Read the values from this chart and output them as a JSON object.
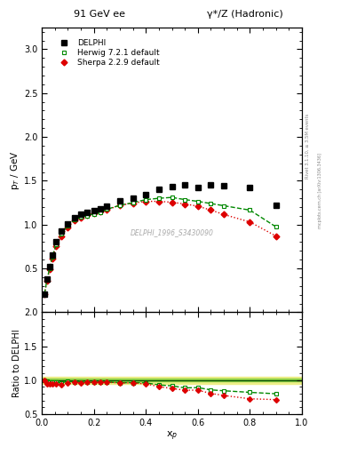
{
  "title_left": "91 GeV ee",
  "title_right": "γ*/Z (Hadronic)",
  "right_label1": "Rivet 3.1.10, ≥ 3.5M events",
  "right_label2": "mcplots.cern.ch [arXiv:1306.3436]",
  "watermark": "DELPHI_1996_S3430090",
  "xlabel": "x$_p$",
  "ylabel": "p$_T$ / GeV",
  "ylabel_ratio": "Ratio to DELPHI",
  "ylim_main": [
    0.0,
    3.25
  ],
  "ylim_ratio": [
    0.5,
    2.0
  ],
  "yticks_main": [
    0.5,
    1.0,
    1.5,
    2.0,
    2.5,
    3.0
  ],
  "yticks_ratio": [
    0.5,
    1.0,
    1.5,
    2.0
  ],
  "xlim": [
    0.0,
    1.0
  ],
  "delphi_x": [
    0.01,
    0.02,
    0.03,
    0.04,
    0.055,
    0.075,
    0.1,
    0.125,
    0.15,
    0.175,
    0.2,
    0.225,
    0.25,
    0.3,
    0.35,
    0.4,
    0.45,
    0.5,
    0.55,
    0.6,
    0.65,
    0.7,
    0.8,
    0.9
  ],
  "delphi_y": [
    0.21,
    0.38,
    0.52,
    0.65,
    0.8,
    0.93,
    1.01,
    1.08,
    1.12,
    1.14,
    1.16,
    1.18,
    1.21,
    1.27,
    1.3,
    1.34,
    1.4,
    1.43,
    1.45,
    1.42,
    1.45,
    1.44,
    1.42,
    1.22
  ],
  "herwig_x": [
    0.01,
    0.02,
    0.03,
    0.04,
    0.055,
    0.075,
    0.1,
    0.125,
    0.15,
    0.175,
    0.2,
    0.225,
    0.25,
    0.3,
    0.35,
    0.4,
    0.45,
    0.5,
    0.55,
    0.6,
    0.65,
    0.7,
    0.8,
    0.9
  ],
  "herwig_y": [
    0.21,
    0.375,
    0.505,
    0.635,
    0.775,
    0.895,
    0.99,
    1.055,
    1.085,
    1.103,
    1.122,
    1.14,
    1.175,
    1.22,
    1.25,
    1.285,
    1.3,
    1.31,
    1.285,
    1.265,
    1.24,
    1.215,
    1.165,
    0.975
  ],
  "sherpa_x": [
    0.01,
    0.02,
    0.03,
    0.04,
    0.055,
    0.075,
    0.1,
    0.125,
    0.15,
    0.175,
    0.2,
    0.225,
    0.25,
    0.3,
    0.35,
    0.4,
    0.45,
    0.5,
    0.55,
    0.6,
    0.65,
    0.7,
    0.8,
    0.9
  ],
  "sherpa_y": [
    0.21,
    0.36,
    0.49,
    0.615,
    0.755,
    0.87,
    0.97,
    1.045,
    1.075,
    1.105,
    1.125,
    1.145,
    1.17,
    1.22,
    1.245,
    1.265,
    1.265,
    1.255,
    1.235,
    1.21,
    1.165,
    1.115,
    1.03,
    0.87
  ],
  "delphi_color": "#000000",
  "herwig_color": "#008800",
  "sherpa_color": "#dd0000",
  "herwig_ratio": [
    1.0,
    0.987,
    0.971,
    0.977,
    0.969,
    0.962,
    0.98,
    0.977,
    0.968,
    0.968,
    0.967,
    0.966,
    0.971,
    0.961,
    0.962,
    0.96,
    0.929,
    0.916,
    0.886,
    0.89,
    0.856,
    0.843,
    0.82,
    0.799
  ],
  "sherpa_ratio": [
    1.0,
    0.947,
    0.942,
    0.946,
    0.944,
    0.935,
    0.96,
    0.968,
    0.959,
    0.969,
    0.969,
    0.97,
    0.967,
    0.961,
    0.958,
    0.945,
    0.904,
    0.877,
    0.852,
    0.852,
    0.804,
    0.774,
    0.725,
    0.713
  ],
  "band_green_inner": 0.02,
  "band_yellow_outer": 0.05
}
